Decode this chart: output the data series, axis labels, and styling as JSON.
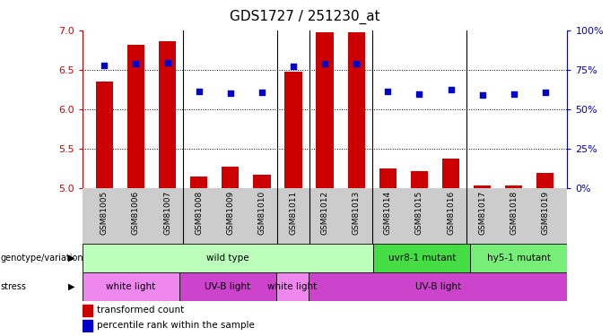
{
  "title": "GDS1727 / 251230_at",
  "samples": [
    "GSM81005",
    "GSM81006",
    "GSM81007",
    "GSM81008",
    "GSM81009",
    "GSM81010",
    "GSM81011",
    "GSM81012",
    "GSM81013",
    "GSM81014",
    "GSM81015",
    "GSM81016",
    "GSM81017",
    "GSM81018",
    "GSM81019"
  ],
  "transformed_count": [
    6.35,
    6.82,
    6.86,
    5.15,
    5.27,
    5.17,
    6.48,
    6.98,
    6.98,
    5.25,
    5.21,
    5.38,
    5.03,
    5.03,
    5.19
  ],
  "percentile_rank": [
    6.56,
    6.58,
    6.59,
    6.22,
    6.2,
    6.21,
    6.54,
    6.58,
    6.58,
    6.22,
    6.19,
    6.25,
    6.18,
    6.19,
    6.21
  ],
  "ylim": [
    5.0,
    7.0
  ],
  "yticks": [
    5.0,
    5.5,
    6.0,
    6.5,
    7.0
  ],
  "right_ytick_pcts": [
    0,
    25,
    50,
    75,
    100
  ],
  "bar_color": "#cc0000",
  "dot_color": "#0000cc",
  "bar_width": 0.55,
  "genotype_groups": [
    {
      "label": "wild type",
      "start": 0,
      "end": 9,
      "color": "#bbffbb"
    },
    {
      "label": "uvr8-1 mutant",
      "start": 9,
      "end": 12,
      "color": "#44dd44"
    },
    {
      "label": "hy5-1 mutant",
      "start": 12,
      "end": 15,
      "color": "#77ee77"
    }
  ],
  "stress_groups": [
    {
      "label": "white light",
      "start": 0,
      "end": 3,
      "color": "#ee88ee"
    },
    {
      "label": "UV-B light",
      "start": 3,
      "end": 6,
      "color": "#cc44cc"
    },
    {
      "label": "white light",
      "start": 6,
      "end": 7,
      "color": "#ee88ee"
    },
    {
      "label": "UV-B light",
      "start": 7,
      "end": 15,
      "color": "#cc44cc"
    }
  ],
  "separator_positions": [
    2.5,
    5.5,
    6.5,
    8.5,
    11.5
  ],
  "axis_color": "#cc0000",
  "right_axis_color": "#0000cc",
  "plot_bg": "#ffffff",
  "label_bg": "#cccccc"
}
